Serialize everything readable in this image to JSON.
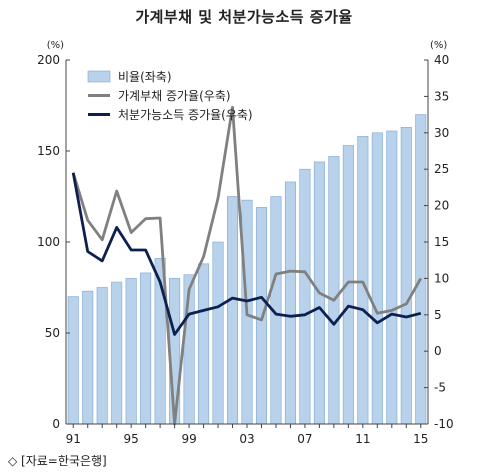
{
  "title": "가계부채 및 처분가능소득 증가율",
  "source": "◇ [자료=한국은행]",
  "colors": {
    "bar": "#b8d2ec",
    "bar_edge": "#7fa6cf",
    "gray_line": "#808080",
    "navy_line": "#0d2050"
  },
  "chart_data": {
    "type": "bar+line",
    "x": [
      1991,
      1992,
      1993,
      1994,
      1995,
      1996,
      1997,
      1998,
      1999,
      2000,
      2001,
      2002,
      2003,
      2004,
      2005,
      2006,
      2007,
      2008,
      2009,
      2010,
      2011,
      2012,
      2013,
      2014,
      2015
    ],
    "x_tick_labels": [
      "91",
      "95",
      "99",
      "03",
      "07",
      "11",
      "15"
    ],
    "left_unit": "(%)",
    "right_unit": "(%)",
    "ylim_left": [
      0,
      200
    ],
    "ylim_right": [
      -10,
      40
    ],
    "left_ticks": [
      0,
      50,
      100,
      150,
      200
    ],
    "right_ticks": [
      -10,
      -5,
      0,
      5,
      10,
      15,
      20,
      25,
      30,
      35,
      40
    ],
    "series": [
      {
        "name": "비율(좌축)",
        "type": "bar",
        "axis": "left",
        "values": [
          70,
          73,
          75,
          78,
          80,
          83,
          91,
          80,
          82,
          88,
          100,
          125,
          123,
          119,
          125,
          133,
          140,
          144,
          147,
          153,
          158,
          160,
          161,
          163,
          170
        ]
      },
      {
        "name": "가계부채 증가율(우축)",
        "type": "line",
        "axis": "right",
        "values": [
          24.5,
          18,
          15.3,
          22,
          16.3,
          18.2,
          18.3,
          -10,
          8.5,
          13,
          21,
          33.5,
          5,
          4.3,
          10.6,
          11,
          10.9,
          8,
          7,
          9.5,
          9.5,
          5.2,
          5.6,
          6.5,
          10
        ]
      },
      {
        "name": "처분가능소득 증가율(우축)",
        "type": "line",
        "axis": "right",
        "values": [
          24.5,
          13.7,
          12.4,
          17,
          13.9,
          13.9,
          9.5,
          2.3,
          5.1,
          5.6,
          6.1,
          7.3,
          6.9,
          7.4,
          5.1,
          4.8,
          5,
          6,
          3.7,
          6.2,
          5.7,
          3.9,
          5.1,
          4.7,
          5.2
        ]
      }
    ]
  }
}
